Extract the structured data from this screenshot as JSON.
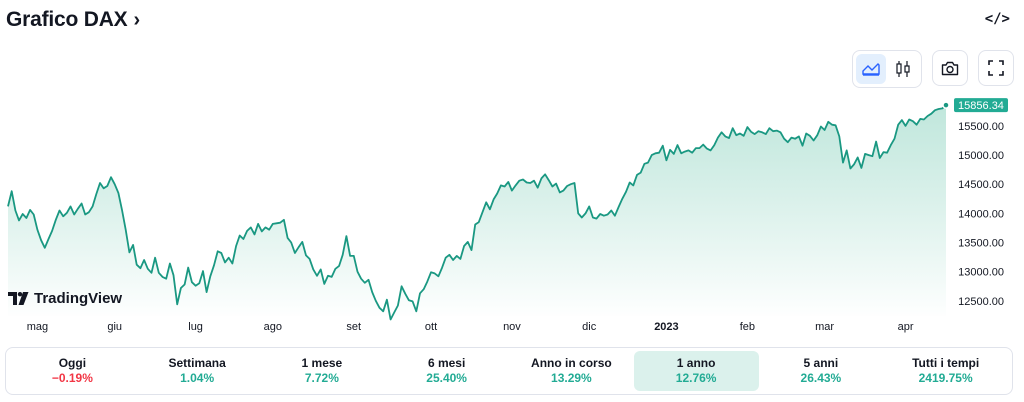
{
  "header": {
    "title": "Grafico DAX",
    "chevron": "›",
    "embed_icon": "</>"
  },
  "toolbar": {
    "buttons": [
      {
        "name": "area-chart-icon",
        "active": true
      },
      {
        "name": "candlestick-icon",
        "active": false
      },
      {
        "name": "camera-icon",
        "active": false
      },
      {
        "name": "fullscreen-icon",
        "active": false
      }
    ]
  },
  "branding": {
    "logo_text": "TradingView"
  },
  "colors": {
    "line": "#1a9882",
    "fill_top": "#b9e4d8",
    "fill_bottom": "#ffffff",
    "price_badge": "#22ab94",
    "positive": "#22ab94",
    "negative": "#f23645",
    "axis_text": "#131722"
  },
  "chart_data": {
    "type": "area",
    "current_price_label": "15856.34",
    "y_ticks": [
      "15500.00",
      "15000.00",
      "14500.00",
      "14000.00",
      "13500.00",
      "13000.00",
      "12500.00"
    ],
    "ylim": [
      12240,
      16150
    ],
    "x_ticks": [
      {
        "label": "mag",
        "i": 8,
        "bold": false
      },
      {
        "label": "giu",
        "i": 29,
        "bold": false
      },
      {
        "label": "lug",
        "i": 51,
        "bold": false
      },
      {
        "label": "ago",
        "i": 72,
        "bold": false
      },
      {
        "label": "set",
        "i": 94,
        "bold": false
      },
      {
        "label": "ott",
        "i": 115,
        "bold": false
      },
      {
        "label": "nov",
        "i": 137,
        "bold": false
      },
      {
        "label": "dic",
        "i": 158,
        "bold": false
      },
      {
        "label": "2023",
        "i": 179,
        "bold": true
      },
      {
        "label": "feb",
        "i": 201,
        "bold": false
      },
      {
        "label": "mar",
        "i": 222,
        "bold": false
      },
      {
        "label": "apr",
        "i": 244,
        "bold": false
      }
    ],
    "values": [
      14120,
      14380,
      14050,
      13880,
      13990,
      13920,
      14060,
      13980,
      13720,
      13540,
      13410,
      13560,
      13700,
      13890,
      14050,
      13950,
      14010,
      14120,
      13980,
      14080,
      14170,
      13980,
      14020,
      14120,
      14330,
      14520,
      14430,
      14470,
      14620,
      14500,
      14350,
      14060,
      13720,
      13330,
      13460,
      13120,
      13060,
      13200,
      13050,
      12980,
      13240,
      12980,
      12910,
      12880,
      13140,
      12940,
      12440,
      12720,
      12780,
      13070,
      12820,
      12760,
      12800,
      13010,
      12650,
      12920,
      13110,
      13350,
      13320,
      13160,
      13240,
      13140,
      13440,
      13620,
      13560,
      13700,
      13760,
      13640,
      13820,
      13690,
      13760,
      13720,
      13820,
      13830,
      13840,
      13890,
      13580,
      13500,
      13320,
      13420,
      13510,
      13280,
      13220,
      13040,
      12930,
      13040,
      12790,
      12930,
      12910,
      13050,
      13100,
      13290,
      13610,
      13270,
      13270,
      13000,
      12880,
      12810,
      12860,
      12650,
      12500,
      12380,
      12320,
      12520,
      12180,
      12300,
      12420,
      12750,
      12620,
      12510,
      12490,
      12320,
      12630,
      12700,
      12830,
      12990,
      12970,
      12920,
      13070,
      13240,
      13290,
      13200,
      13270,
      13220,
      13440,
      13510,
      13370,
      13810,
      13850,
      14020,
      14190,
      14070,
      14240,
      14340,
      14480,
      14460,
      14540,
      14390,
      14480,
      14560,
      14580,
      14530,
      14520,
      14560,
      14440,
      14600,
      14670,
      14570,
      14460,
      14510,
      14360,
      14390,
      14470,
      14500,
      14520,
      14000,
      13930,
      14000,
      14120,
      13930,
      13910,
      13990,
      13960,
      13980,
      14050,
      13960,
      14110,
      14250,
      14370,
      14530,
      14480,
      14660,
      14700,
      14850,
      14870,
      15000,
      15030,
      15040,
      15160,
      14910,
      15090,
      15020,
      15170,
      15030,
      15060,
      15080,
      15040,
      15120,
      15120,
      15180,
      15110,
      15080,
      15170,
      15300,
      15390,
      15320,
      15290,
      15460,
      15340,
      15370,
      15330,
      15480,
      15400,
      15360,
      15410,
      15390,
      15360,
      15460,
      15410,
      15420,
      15390,
      15280,
      15220,
      15300,
      15280,
      15320,
      15160,
      15370,
      15330,
      15250,
      15340,
      15490,
      15430,
      15570,
      15520,
      15510,
      15320,
      14870,
      15080,
      14770,
      14840,
      14960,
      14780,
      15020,
      15000,
      14980,
      15230,
      14950,
      15050,
      15040,
      15170,
      15280,
      15520,
      15600,
      15500,
      15610,
      15580,
      15520,
      15620,
      15610,
      15670,
      15710,
      15770,
      15790,
      15800,
      15856
    ]
  },
  "tabs": [
    {
      "label": "Oggi",
      "value": "−0.19%",
      "dir": "neg",
      "selected": false
    },
    {
      "label": "Settimana",
      "value": "1.04%",
      "dir": "pos",
      "selected": false
    },
    {
      "label": "1 mese",
      "value": "7.72%",
      "dir": "pos",
      "selected": false
    },
    {
      "label": "6 mesi",
      "value": "25.40%",
      "dir": "pos",
      "selected": false
    },
    {
      "label": "Anno in corso",
      "value": "13.29%",
      "dir": "pos",
      "selected": false
    },
    {
      "label": "1 anno",
      "value": "12.76%",
      "dir": "pos",
      "selected": true
    },
    {
      "label": "5 anni",
      "value": "26.43%",
      "dir": "pos",
      "selected": false
    },
    {
      "label": "Tutti i tempi",
      "value": "2419.75%",
      "dir": "pos",
      "selected": false
    }
  ]
}
